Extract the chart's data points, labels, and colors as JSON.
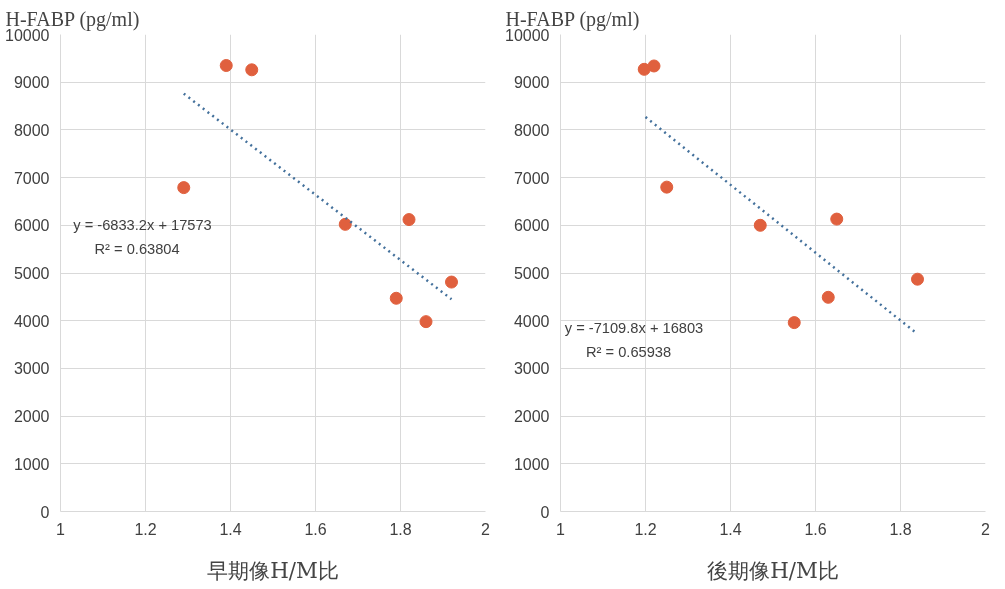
{
  "chart_data": [
    {
      "type": "scatter",
      "ylabel": "H-FABP   (pg/ml)",
      "xlabel": "早期像H/M比",
      "xlim": [
        1,
        2
      ],
      "xticks": [
        1,
        1.2,
        1.4,
        1.6,
        1.8,
        2
      ],
      "ylim": [
        0,
        10000
      ],
      "yticks": [
        0,
        1000,
        2000,
        3000,
        4000,
        5000,
        6000,
        7000,
        8000,
        9000,
        10000
      ],
      "grid": true,
      "series": [
        {
          "marker": "circle",
          "color": "#e0603e",
          "x": [
            1.39,
            1.45,
            1.29,
            1.67,
            1.82,
            1.79,
            1.86,
            1.92
          ],
          "values": [
            9350,
            9260,
            6790,
            6020,
            6120,
            4470,
            3980,
            4810
          ]
        },
        {
          "type": "line",
          "color": "#44719c",
          "line_style": "dotted",
          "x": [
            1.29,
            1.92
          ],
          "values": [
            8760,
            4450
          ]
        }
      ],
      "annotations": [
        "y = -6833.2x + 17573",
        "R² = 0.63804"
      ]
    },
    {
      "type": "scatter",
      "ylabel": "H-FABP   (pg/ml)",
      "xlabel": "後期像H/M比",
      "xlim": [
        1,
        2
      ],
      "xticks": [
        1,
        1.2,
        1.4,
        1.6,
        1.8,
        2
      ],
      "ylim": [
        0,
        10000
      ],
      "yticks": [
        0,
        1000,
        2000,
        3000,
        4000,
        5000,
        6000,
        7000,
        8000,
        9000,
        10000
      ],
      "grid": true,
      "series": [
        {
          "marker": "circle",
          "color": "#e0603e",
          "x": [
            1.197,
            1.22,
            1.25,
            1.47,
            1.65,
            1.55,
            1.63,
            1.84
          ],
          "values": [
            9270,
            9340,
            6800,
            6000,
            6130,
            3960,
            4490,
            4870
          ]
        },
        {
          "type": "line",
          "color": "#44719c",
          "line_style": "dotted",
          "x": [
            1.2,
            1.84
          ],
          "values": [
            8270,
            3720
          ]
        }
      ],
      "annotations": [
        "y = -7109.8x + 16803",
        "R² = 0.65938"
      ]
    }
  ]
}
